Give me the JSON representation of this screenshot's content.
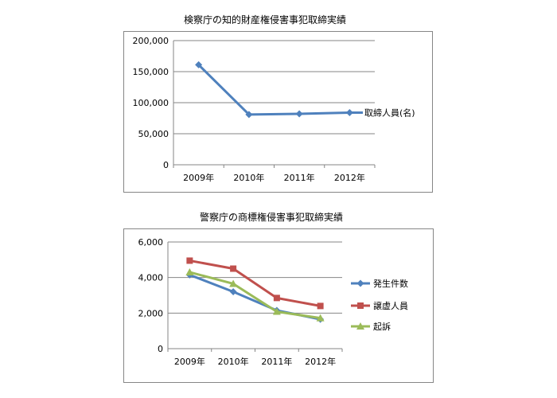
{
  "chart_data": [
    {
      "type": "line",
      "title": "検察庁の知的財産権侵害事犯取締実績",
      "categories": [
        "2009年",
        "2010年",
        "2011年",
        "2012年"
      ],
      "ylim": [
        0,
        200000
      ],
      "yticks": [
        "0",
        "50,000",
        "100,000",
        "150,000",
        "200,000"
      ],
      "ytick_values": [
        0,
        50000,
        100000,
        150000,
        200000
      ],
      "series": [
        {
          "name": "取締人員(名)",
          "values": [
            161000,
            81000,
            82000,
            84000
          ],
          "color": "#4F81BD",
          "marker": "diamond"
        }
      ],
      "grid": true,
      "legend": "series label at line end"
    },
    {
      "type": "line",
      "title": "警察庁の商標権侵害事犯取締実績",
      "categories": [
        "2009年",
        "2010年",
        "2011年",
        "2012年"
      ],
      "ylim": [
        0,
        6000
      ],
      "yticks": [
        "0",
        "2,000",
        "4,000",
        "6,000"
      ],
      "ytick_values": [
        0,
        2000,
        4000,
        6000
      ],
      "series": [
        {
          "name": "発生件数",
          "values": [
            4150,
            3200,
            2150,
            1650
          ],
          "color": "#4F81BD",
          "marker": "diamond"
        },
        {
          "name": "譲虚人員",
          "values": [
            4950,
            4500,
            2850,
            2400
          ],
          "color": "#C0504D",
          "marker": "square"
        },
        {
          "name": "起訴",
          "values": [
            4300,
            3650,
            2080,
            1720
          ],
          "color": "#9BBB59",
          "marker": "triangle"
        }
      ],
      "grid": true,
      "legend": "right"
    }
  ]
}
